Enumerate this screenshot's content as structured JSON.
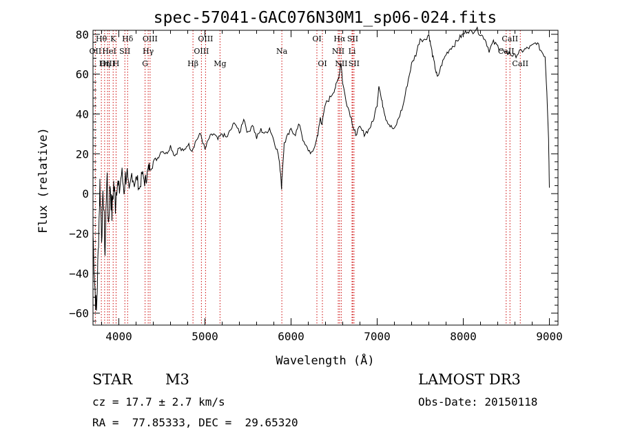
{
  "chart_data": {
    "type": "line",
    "title": "spec-57041-GAC076N30M1_sp06-024.fits",
    "xlabel": "Wavelength (Å)",
    "ylabel": "Flux (relative)",
    "xlim": [
      3700,
      9100
    ],
    "ylim": [
      -66,
      82
    ],
    "xticks": [
      4000,
      5000,
      6000,
      7000,
      8000,
      9000
    ],
    "yticks": [
      -60,
      -40,
      -20,
      0,
      20,
      40,
      60,
      80
    ],
    "grid": false,
    "series": [
      {
        "name": "spectrum",
        "x": [
          3700,
          3720,
          3740,
          3760,
          3780,
          3800,
          3820,
          3840,
          3860,
          3880,
          3900,
          3920,
          3940,
          3960,
          3980,
          4000,
          4030,
          4060,
          4090,
          4120,
          4150,
          4180,
          4210,
          4240,
          4270,
          4300,
          4320,
          4340,
          4360,
          4400,
          4450,
          4500,
          4550,
          4600,
          4650,
          4700,
          4750,
          4800,
          4850,
          4900,
          4950,
          5000,
          5050,
          5100,
          5150,
          5200,
          5250,
          5300,
          5350,
          5400,
          5450,
          5500,
          5550,
          5600,
          5650,
          5700,
          5750,
          5800,
          5850,
          5880,
          5890,
          5900,
          5920,
          5950,
          6000,
          6050,
          6100,
          6150,
          6200,
          6250,
          6300,
          6320,
          6340,
          6360,
          6400,
          6450,
          6500,
          6530,
          6560,
          6580,
          6600,
          6650,
          6700,
          6730,
          6750,
          6800,
          6850,
          6900,
          6950,
          7000,
          7020,
          7050,
          7080,
          7100,
          7150,
          7200,
          7250,
          7300,
          7350,
          7400,
          7450,
          7500,
          7550,
          7600,
          7620,
          7650,
          7680,
          7700,
          7750,
          7800,
          7850,
          7900,
          7950,
          8000,
          8050,
          8100,
          8150,
          8200,
          8250,
          8300,
          8350,
          8400,
          8450,
          8500,
          8530,
          8550,
          8600,
          8650,
          8700,
          8750,
          8800,
          8850,
          8900,
          8950,
          8970,
          8990,
          9000
        ],
        "y": [
          -20,
          -45,
          -60,
          -30,
          5,
          -20,
          0,
          -30,
          10,
          -15,
          5,
          -10,
          5,
          -5,
          8,
          0,
          10,
          3,
          12,
          0,
          10,
          5,
          8,
          2,
          10,
          6,
          8,
          12,
          14,
          16,
          18,
          22,
          20,
          24,
          19,
          23,
          21,
          25,
          22,
          27,
          30,
          22,
          28,
          30,
          27,
          30,
          28,
          32,
          36,
          30,
          38,
          30,
          35,
          28,
          32,
          30,
          33,
          27,
          20,
          10,
          3,
          12,
          25,
          28,
          32,
          30,
          35,
          25,
          22,
          20,
          28,
          32,
          38,
          35,
          45,
          48,
          52,
          55,
          60,
          66,
          55,
          45,
          38,
          32,
          30,
          33,
          30,
          32,
          36,
          45,
          55,
          47,
          42,
          38,
          34,
          32,
          38,
          44,
          55,
          65,
          70,
          78,
          77,
          80,
          75,
          68,
          62,
          58,
          65,
          70,
          73,
          75,
          78,
          80,
          82,
          81,
          83,
          80,
          78,
          72,
          76,
          74,
          72,
          70,
          71,
          70,
          69,
          71,
          72,
          73,
          74,
          76,
          72,
          69,
          52,
          28,
          3
        ]
      }
    ],
    "spectral_lines": [
      {
        "name": "Hθ",
        "wavelength": 3797,
        "row": 0
      },
      {
        "name": "OII",
        "wavelength": 3727,
        "row": 1
      },
      {
        "name": "OIII",
        "wavelength": 3869,
        "row": 2
      },
      {
        "name": "K",
        "wavelength": 3934,
        "row": 0
      },
      {
        "name": "HeI",
        "wavelength": 3889,
        "row": 1
      },
      {
        "name": "Hη",
        "wavelength": 3835,
        "row": 2
      },
      {
        "name": "H",
        "wavelength": 3968,
        "row": 2
      },
      {
        "name": "SII",
        "wavelength": 4070,
        "row": 1
      },
      {
        "name": "Hδ",
        "wavelength": 4102,
        "row": 0
      },
      {
        "name": "OIII",
        "wavelength": 4363,
        "row": 0
      },
      {
        "name": "Hγ",
        "wavelength": 4341,
        "row": 1
      },
      {
        "name": "G",
        "wavelength": 4305,
        "row": 2
      },
      {
        "name": "Hβ",
        "wavelength": 4861,
        "row": 2
      },
      {
        "name": "OIII",
        "wavelength": 5007,
        "row": 0
      },
      {
        "name": "OIII",
        "wavelength": 4959,
        "row": 1
      },
      {
        "name": "Mg",
        "wavelength": 5175,
        "row": 2
      },
      {
        "name": "Na",
        "wavelength": 5893,
        "row": 1
      },
      {
        "name": "OI",
        "wavelength": 6300,
        "row": 0
      },
      {
        "name": "OI",
        "wavelength": 6364,
        "row": 2
      },
      {
        "name": "Hα",
        "wavelength": 6563,
        "row": 0
      },
      {
        "name": "SII",
        "wavelength": 6716,
        "row": 0
      },
      {
        "name": "NII",
        "wavelength": 6548,
        "row": 1
      },
      {
        "name": "Li",
        "wavelength": 6708,
        "row": 1
      },
      {
        "name": "NII",
        "wavelength": 6583,
        "row": 2
      },
      {
        "name": "SII",
        "wavelength": 6731,
        "row": 2
      },
      {
        "name": "CaII",
        "wavelength": 8542,
        "row": 0
      },
      {
        "name": "CaII",
        "wavelength": 8498,
        "row": 1
      },
      {
        "name": "CaII",
        "wavelength": 8662,
        "row": 2
      }
    ]
  },
  "info": {
    "object_class": "STAR",
    "subclass": "M3",
    "survey": "LAMOST DR3",
    "cz": "cz = 17.7 ± 2.7 km/s",
    "obs_date": "Obs-Date: 20150118",
    "coords": "RA =  77.85333, DEC =  29.65320"
  },
  "colors": {
    "line": "#000000",
    "marker": "#cc0000",
    "background": "#ffffff"
  }
}
